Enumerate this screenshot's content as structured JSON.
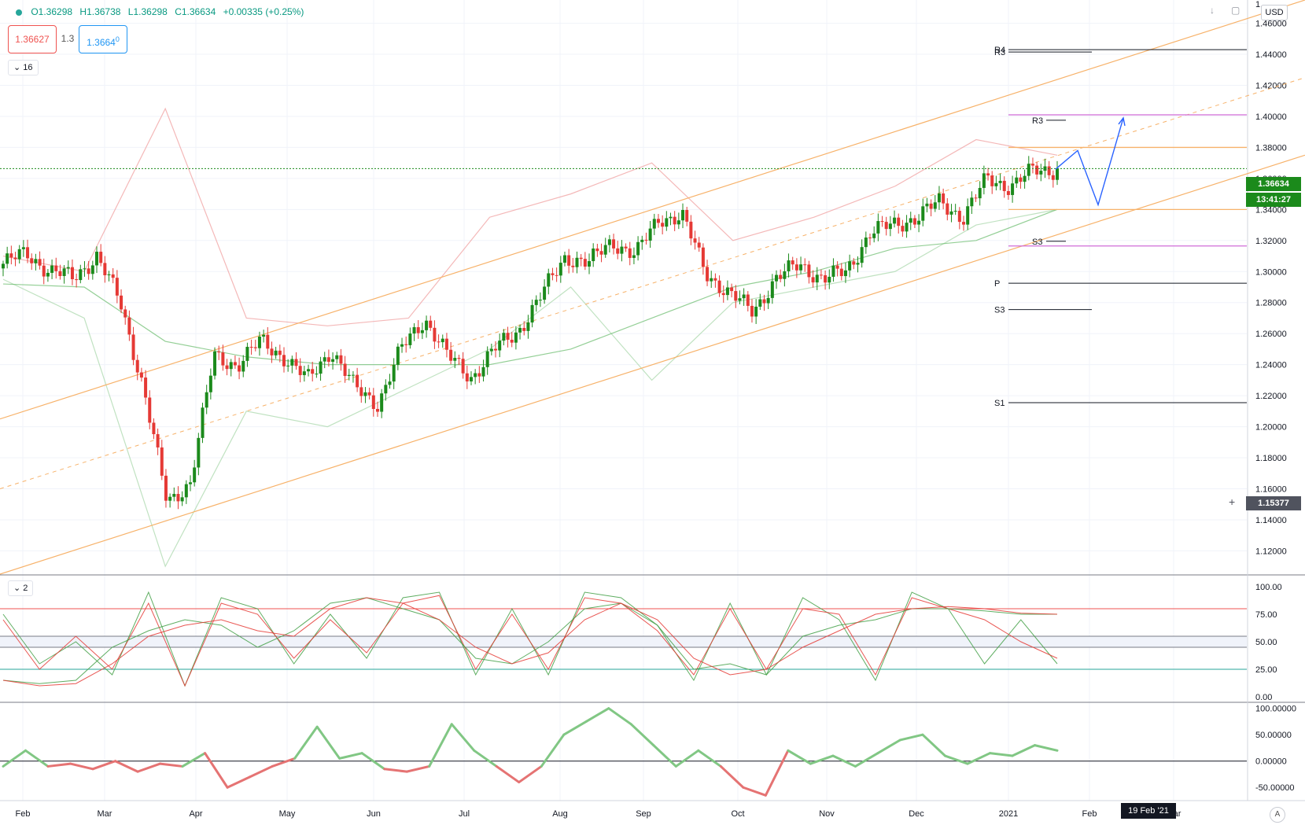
{
  "header": {
    "ohlc": {
      "o": "O1.36298",
      "h": "H1.36738",
      "l": "L1.36298",
      "c": "C1.36634",
      "chg": "+0.00335 (+0.25%)"
    },
    "sell_price": "1.36627",
    "spread": "1.3",
    "buy_price": "1.3664",
    "buy_price_small": "0",
    "currency": "USD",
    "main_pane_collapse": "16",
    "stoch_pane_collapse": "2",
    "icon_names": [
      "arrow-down-icon",
      "maximize-icon"
    ]
  },
  "price_labels": {
    "last": "1.36634",
    "countdown": "13:41:27",
    "crosshair": "1.15377",
    "cursor_date": "19 Feb '21",
    "auto": "A"
  },
  "colors": {
    "up": "#26a69a",
    "down": "#ef5350",
    "candle_up": "#1b8a1b",
    "candle_down": "#e53935",
    "channel": "#f7b26a",
    "pivot_magenta": "#d16bd8",
    "projection": "#2962ff"
  },
  "chart_data": [
    {
      "type": "candlestick",
      "pane": "price",
      "ylim": [
        1.105,
        1.475
      ],
      "y_ticks": [
        "1.46000",
        "1.44000",
        "1.42000",
        "1.40000",
        "1.38000",
        "1.36000",
        "1.34000",
        "1.32000",
        "1.30000",
        "1.28000",
        "1.26000",
        "1.24000",
        "1.22000",
        "1.20000",
        "1.18000",
        "1.16000",
        "1.14000",
        "1.12000"
      ],
      "top_tick_partial": "1.",
      "x_ticks": [
        "Feb",
        "Mar",
        "Apr",
        "May",
        "Jun",
        "Jul",
        "Aug",
        "Sep",
        "Oct",
        "Nov",
        "Dec",
        "2021",
        "Feb",
        "Mar"
      ],
      "close_anchors": [
        [
          "Feb",
          1.305
        ],
        [
          "Feb",
          1.312
        ],
        [
          "Feb",
          1.3
        ],
        [
          "Mar",
          1.296
        ],
        [
          "Mar",
          1.31
        ],
        [
          "Mar",
          1.28
        ],
        [
          "Mar",
          1.225
        ],
        [
          "Mar",
          1.15
        ],
        [
          "Mar",
          1.165
        ],
        [
          "Apr",
          1.245
        ],
        [
          "Apr",
          1.24
        ],
        [
          "Apr",
          1.255
        ],
        [
          "Apr",
          1.245
        ],
        [
          "May",
          1.23
        ],
        [
          "May",
          1.25
        ],
        [
          "May",
          1.225
        ],
        [
          "May",
          1.215
        ],
        [
          "Jun",
          1.25
        ],
        [
          "Jun",
          1.27
        ],
        [
          "Jun",
          1.245
        ],
        [
          "Jun",
          1.232
        ],
        [
          "Jul",
          1.25
        ],
        [
          "Jul",
          1.262
        ],
        [
          "Jul",
          1.285
        ],
        [
          "Jul",
          1.31
        ],
        [
          "Aug",
          1.305
        ],
        [
          "Aug",
          1.32
        ],
        [
          "Aug",
          1.31
        ],
        [
          "Aug",
          1.335
        ],
        [
          "Sep",
          1.335
        ],
        [
          "Sep",
          1.3
        ],
        [
          "Sep",
          1.285
        ],
        [
          "Sep",
          1.275
        ],
        [
          "Oct",
          1.295
        ],
        [
          "Oct",
          1.305
        ],
        [
          "Oct",
          1.295
        ],
        [
          "Nov",
          1.3
        ],
        [
          "Nov",
          1.325
        ],
        [
          "Nov",
          1.33
        ],
        [
          "Nov",
          1.335
        ],
        [
          "Dec",
          1.345
        ],
        [
          "Dec",
          1.335
        ],
        [
          "Dec",
          1.36
        ],
        [
          "Dec",
          1.355
        ],
        [
          "2021",
          1.365
        ],
        [
          "2021",
          1.366
        ]
      ],
      "last_price": 1.36634,
      "overlays": {
        "sma_green": [
          1.292,
          1.29,
          1.255,
          1.245,
          1.24,
          1.24,
          1.24,
          1.25,
          1.27,
          1.29,
          1.3,
          1.315,
          1.32,
          1.34
        ],
        "bollinger_upper": [
          1.31,
          1.3,
          1.405,
          1.27,
          1.265,
          1.27,
          1.335,
          1.35,
          1.37,
          1.32,
          1.335,
          1.355,
          1.385,
          1.375
        ],
        "bollinger_lower": [
          1.295,
          1.27,
          1.11,
          1.21,
          1.2,
          1.225,
          1.25,
          1.29,
          1.23,
          1.28,
          1.29,
          1.3,
          1.33,
          1.34
        ],
        "channel_upper_line": [
          [
            0,
            1.205
          ],
          [
            1659,
            1.475
          ]
        ],
        "channel_lower_line": [
          [
            0,
            1.105
          ],
          [
            1659,
            1.375
          ]
        ],
        "channel_mid_dashed": [
          [
            0,
            1.16
          ],
          [
            1659,
            1.425
          ]
        ]
      },
      "pivot_levels": [
        {
          "label": "R4",
          "value": 1.443
        },
        {
          "label": "R3",
          "value": 1.4415
        },
        {
          "label": "R3",
          "value": 1.3975
        },
        {
          "label": "S3",
          "value": 1.3195
        },
        {
          "label": "P",
          "value": 1.2925
        },
        {
          "label": "S3",
          "value": 1.2755
        },
        {
          "label": "S1",
          "value": 1.2155
        }
      ],
      "horizontal_lines": [
        {
          "value": 1.401,
          "color": "magenta"
        },
        {
          "value": 1.38,
          "color": "orange"
        },
        {
          "value": 1.34,
          "color": "orange"
        },
        {
          "value": 1.3165,
          "color": "magenta"
        }
      ],
      "projection_path": [
        [
          "2021",
          1.366
        ],
        [
          "Feb",
          1.378
        ],
        [
          "Feb",
          1.343
        ],
        [
          "Mar",
          1.399
        ]
      ]
    },
    {
      "type": "line",
      "pane": "stochastic",
      "ylim": [
        0,
        100
      ],
      "y_ticks": [
        "100.00",
        "75.00",
        "50.00",
        "25.00",
        "0.00"
      ],
      "levels": [
        80,
        55,
        45,
        25
      ],
      "series": [
        {
          "color": "green",
          "values": [
            75,
            30,
            50,
            20,
            95,
            10,
            90,
            80,
            30,
            75,
            35,
            90,
            95,
            20,
            80,
            20,
            95,
            90,
            65,
            15,
            85,
            20,
            90,
            70,
            15,
            95,
            80,
            30,
            70,
            30
          ]
        },
        {
          "color": "red",
          "values": [
            70,
            25,
            55,
            25,
            85,
            10,
            85,
            75,
            35,
            70,
            40,
            85,
            92,
            25,
            75,
            25,
            90,
            85,
            60,
            20,
            80,
            25,
            80,
            75,
            20,
            90,
            80,
            70,
            50,
            35
          ]
        },
        {
          "color": "green_slow",
          "values": [
            15,
            12,
            15,
            45,
            60,
            70,
            65,
            45,
            60,
            85,
            90,
            80,
            70,
            35,
            30,
            50,
            80,
            85,
            65,
            25,
            30,
            20,
            55,
            65,
            70,
            80,
            80,
            78,
            75,
            75
          ]
        },
        {
          "color": "red_slow",
          "values": [
            15,
            10,
            12,
            30,
            55,
            65,
            70,
            60,
            55,
            80,
            90,
            85,
            70,
            45,
            30,
            40,
            70,
            85,
            70,
            35,
            20,
            25,
            45,
            60,
            75,
            80,
            82,
            80,
            76,
            75
          ]
        }
      ]
    },
    {
      "type": "line",
      "pane": "momentum",
      "ylim": [
        -75,
        110
      ],
      "y_ticks": [
        "100.00000",
        "50.00000",
        "0.00000",
        "-50.00000"
      ],
      "zero_line": 0,
      "values": [
        -10,
        20,
        -10,
        -5,
        -15,
        0,
        -20,
        -5,
        -10,
        15,
        -50,
        -30,
        -10,
        5,
        65,
        5,
        15,
        -15,
        -20,
        -10,
        70,
        20,
        -10,
        -40,
        -10,
        50,
        75,
        100,
        70,
        30,
        -10,
        20,
        -10,
        -50,
        -65,
        20,
        -5,
        10,
        -10,
        15,
        40,
        50,
        10,
        -5,
        15,
        10,
        30,
        20
      ]
    }
  ]
}
